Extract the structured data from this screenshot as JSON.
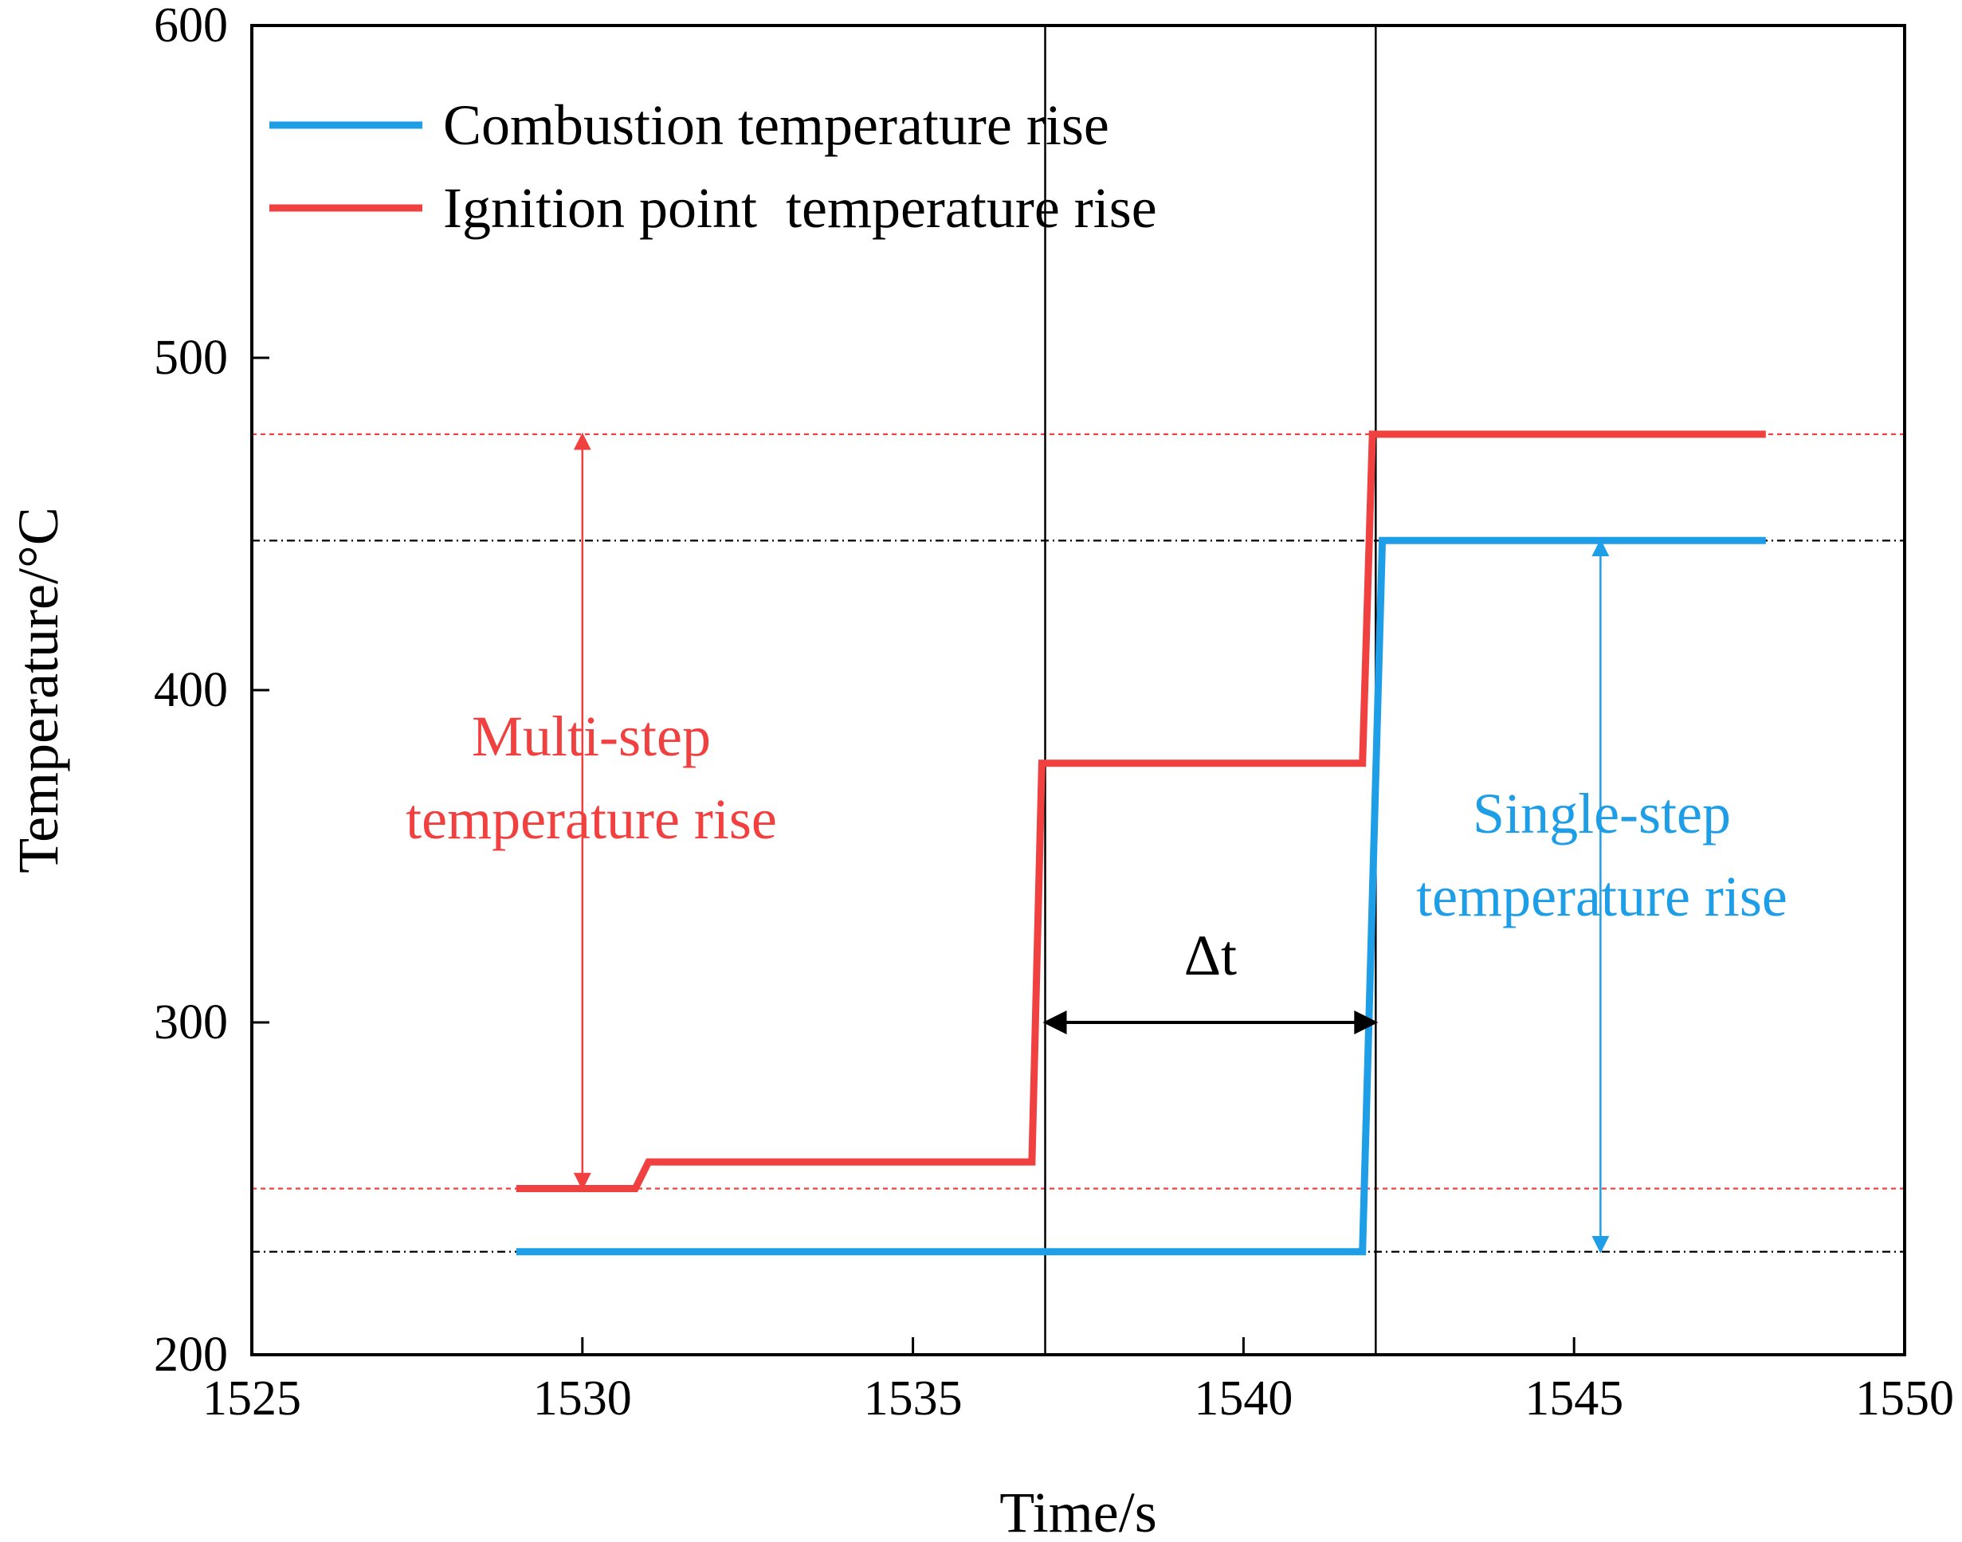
{
  "chart_data": {
    "type": "line",
    "xlabel": "Time/s",
    "ylabel": "Temperature/°C",
    "xlim": [
      1525,
      1550
    ],
    "ylim": [
      200,
      600
    ],
    "xticks": [
      1525,
      1530,
      1535,
      1540,
      1545,
      1550
    ],
    "yticks": [
      200,
      300,
      400,
      500,
      600
    ],
    "grid": false,
    "legend_position": "top-left",
    "series": [
      {
        "name": "Combustion temperature rise",
        "color": "#1f9ee8",
        "x": [
          1529,
          1541.8,
          1542.1,
          1547.9
        ],
        "y": [
          231,
          231,
          445,
          445
        ]
      },
      {
        "name": "Ignition point  temperature rise",
        "color": "#f04040",
        "x": [
          1529,
          1530.8,
          1531,
          1536.8,
          1536.95,
          1541.8,
          1541.95,
          1547.9
        ],
        "y": [
          250,
          250,
          258,
          258,
          378,
          378,
          477,
          477
        ]
      }
    ],
    "reference_lines": {
      "horizontal": [
        {
          "y": 477,
          "color": "#f04040",
          "style": "dotted"
        },
        {
          "y": 445,
          "color": "#000000",
          "style": "dash-dot"
        },
        {
          "y": 250,
          "color": "#f04040",
          "style": "dotted"
        },
        {
          "y": 231,
          "color": "#000000",
          "style": "dash-dot"
        }
      ],
      "vertical": [
        1537,
        1542
      ]
    },
    "annotations": {
      "multi_step": {
        "lines": [
          "Multi-step",
          "temperature rise"
        ],
        "color": "#f04040",
        "arrow_x": 1530,
        "from": 250,
        "to": 477
      },
      "single_step": {
        "lines": [
          "Single-step",
          "temperature rise"
        ],
        "color": "#1f9ee8",
        "arrow_x": 1545.4,
        "from": 231,
        "to": 445
      },
      "delta_t": {
        "label": "Δt",
        "from": 1537,
        "to": 1542,
        "y": 300
      }
    }
  }
}
